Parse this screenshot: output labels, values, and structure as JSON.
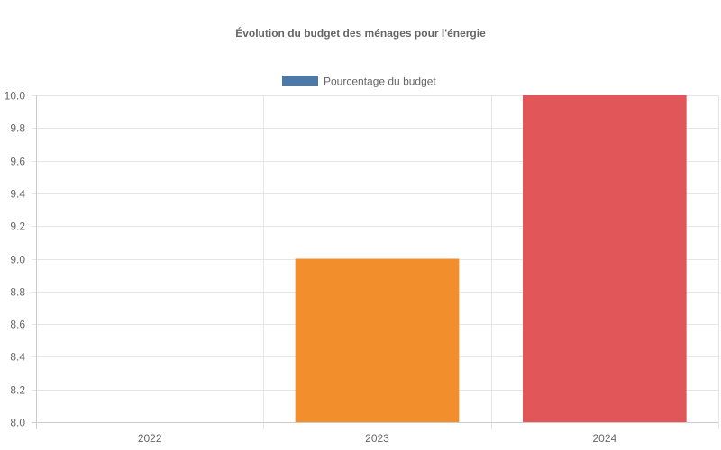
{
  "chart_data": {
    "type": "bar",
    "title": "Évolution du budget des ménages pour l'énergie",
    "categories": [
      "2022",
      "2023",
      "2024"
    ],
    "series": [
      {
        "name": "Pourcentage du budget",
        "values": [
          8.0,
          9.0,
          10.0
        ],
        "colors": [
          "#4e79a7",
          "#f28e2b",
          "#e15759"
        ]
      }
    ],
    "legend_color": "#4e79a7",
    "legend_position": "top",
    "ylim": [
      8.0,
      10.0
    ],
    "yticks": [
      "8.0",
      "8.2",
      "8.4",
      "8.6",
      "8.8",
      "9.0",
      "9.2",
      "9.4",
      "9.6",
      "9.8",
      "10.0"
    ],
    "grid": true
  }
}
